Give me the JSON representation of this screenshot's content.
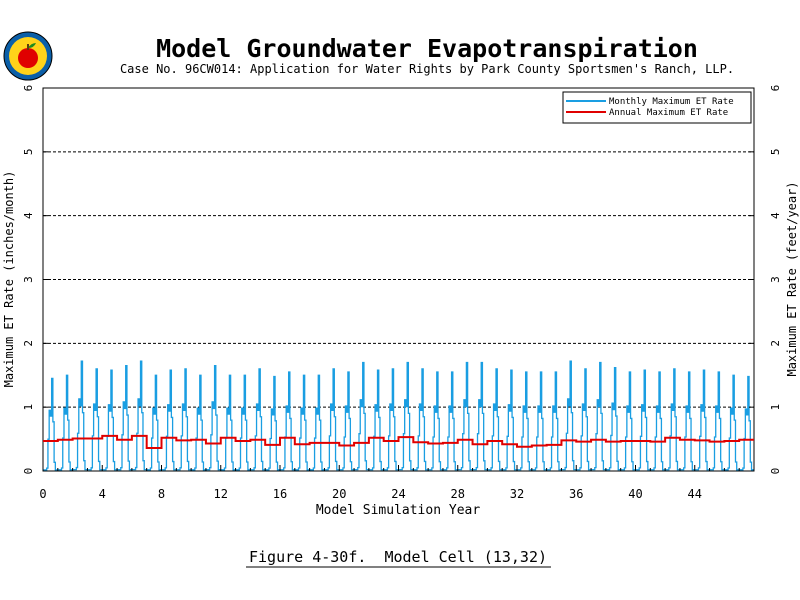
{
  "chart_data": {
    "type": "line",
    "title": "Model Groundwater Evapotranspiration",
    "subtitle": "Case No. 96CW014: Application for Water Rights by Park County Sportsmen's Ranch, LLP.",
    "xlabel": "Model Simulation Year",
    "ylabel_left": "Maximum ET Rate (inches/month)",
    "ylabel_right": "Maximum ET Rate (feet/year)",
    "xlim": [
      0,
      48
    ],
    "ylim": [
      0,
      6
    ],
    "xticks": [
      "0",
      "4",
      "8",
      "12",
      "16",
      "20",
      "24",
      "28",
      "32",
      "36",
      "40",
      "44"
    ],
    "xtick_values": [
      0,
      4,
      8,
      12,
      16,
      20,
      24,
      28,
      32,
      36,
      40,
      44
    ],
    "yticks_left": [
      "0",
      "1",
      "2",
      "3",
      "4",
      "5",
      "6"
    ],
    "yticks_right": [
      "0",
      "1",
      "2",
      "3",
      "4",
      "5",
      "6"
    ],
    "ytick_values": [
      0,
      1,
      2,
      3,
      4,
      5,
      6
    ],
    "grid": "horizontal dashed at 1-5",
    "legend_position": "top-right",
    "monthly_profile": [
      0.02,
      0.02,
      0.02,
      0.05,
      0.55,
      1.05,
      0.95,
      1.6,
      0.85,
      0.15,
      0.02,
      0.02
    ],
    "series": [
      {
        "name": "Monthly Maximum ET Rate",
        "color": "#1a9ee2",
        "annual_peak": [
          1.45,
          1.5,
          1.72,
          1.6,
          1.58,
          1.65,
          1.72,
          1.5,
          1.58,
          1.6,
          1.5,
          1.65,
          1.5,
          1.5,
          1.6,
          1.48,
          1.55,
          1.5,
          1.5,
          1.6,
          1.55,
          1.7,
          1.58,
          1.6,
          1.7,
          1.6,
          1.55,
          1.55,
          1.7,
          1.7,
          1.6,
          1.58,
          1.55,
          1.55,
          1.55,
          1.72,
          1.6,
          1.7,
          1.62,
          1.55,
          1.58,
          1.55,
          1.6,
          1.55,
          1.58,
          1.55,
          1.5,
          1.48
        ]
      },
      {
        "name": "Annual Maximum ET Rate",
        "color": "#e00000",
        "values": [
          0.47,
          0.49,
          0.51,
          0.51,
          0.55,
          0.49,
          0.55,
          0.36,
          0.52,
          0.48,
          0.49,
          0.43,
          0.52,
          0.47,
          0.49,
          0.41,
          0.52,
          0.42,
          0.44,
          0.44,
          0.4,
          0.44,
          0.52,
          0.47,
          0.53,
          0.45,
          0.43,
          0.44,
          0.49,
          0.42,
          0.47,
          0.42,
          0.38,
          0.4,
          0.41,
          0.48,
          0.46,
          0.49,
          0.46,
          0.47,
          0.47,
          0.46,
          0.52,
          0.49,
          0.48,
          0.46,
          0.47,
          0.49
        ]
      }
    ]
  },
  "logo": {
    "label": "logo-seal"
  },
  "caption": "Figure 4-30f.  Model Cell (13,32)"
}
